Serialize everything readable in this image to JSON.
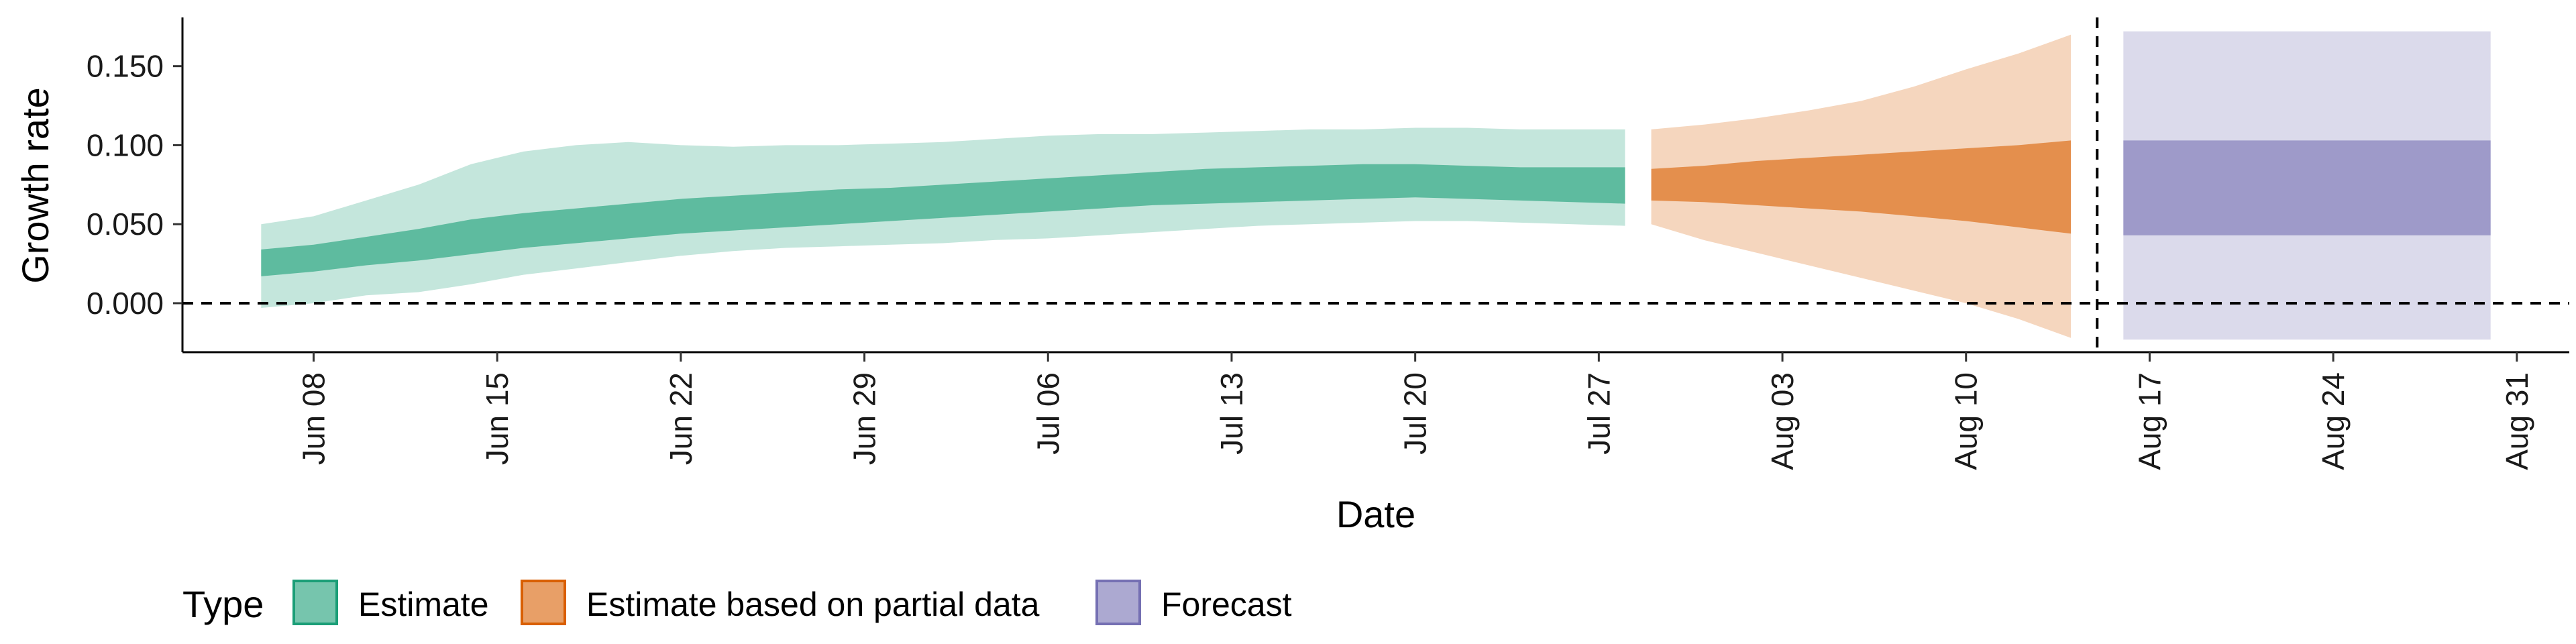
{
  "chart_data": {
    "type": "area",
    "xlabel": "Date",
    "ylabel": "Growth rate",
    "xlim": [
      "2020-06-03",
      "2020-09-02"
    ],
    "ylim": [
      -0.031,
      0.18
    ],
    "x_ticks": [
      "2020-06-08",
      "2020-06-15",
      "2020-06-22",
      "2020-06-29",
      "2020-07-06",
      "2020-07-13",
      "2020-07-20",
      "2020-07-27",
      "2020-08-03",
      "2020-08-10",
      "2020-08-17",
      "2020-08-24",
      "2020-08-31"
    ],
    "x_tick_labels": [
      "Jun 08",
      "Jun 15",
      "Jun 22",
      "Jun 29",
      "Jul 06",
      "Jul 13",
      "Jul 20",
      "Jul 27",
      "Aug 03",
      "Aug 10",
      "Aug 17",
      "Aug 24",
      "Aug 31"
    ],
    "y_ticks": [
      0.0,
      0.05,
      0.1,
      0.15
    ],
    "y_tick_labels": [
      "0.000",
      "0.050",
      "0.100",
      "0.150"
    ],
    "reference_lines": {
      "horizontal_y": 0.0,
      "vertical_x": "2020-08-15"
    },
    "grid": false,
    "legend": {
      "title": "Type",
      "position": "bottom-left",
      "entries": [
        "Estimate",
        "Estimate based on partial data",
        "Forecast"
      ]
    },
    "colors": {
      "Estimate": "#1b9e77",
      "Estimate based on partial data": "#d95f02",
      "Forecast": "#7570b3"
    },
    "series": [
      {
        "name": "Estimate",
        "x": [
          "2020-06-06",
          "2020-06-08",
          "2020-06-10",
          "2020-06-12",
          "2020-06-14",
          "2020-06-16",
          "2020-06-18",
          "2020-06-20",
          "2020-06-22",
          "2020-06-24",
          "2020-06-26",
          "2020-06-28",
          "2020-06-30",
          "2020-07-02",
          "2020-07-04",
          "2020-07-06",
          "2020-07-08",
          "2020-07-10",
          "2020-07-12",
          "2020-07-14",
          "2020-07-16",
          "2020-07-18",
          "2020-07-20",
          "2020-07-22",
          "2020-07-24",
          "2020-07-26",
          "2020-07-28"
        ],
        "lower_90": [
          -0.003,
          0.0,
          0.005,
          0.007,
          0.012,
          0.018,
          0.022,
          0.026,
          0.03,
          0.033,
          0.035,
          0.036,
          0.037,
          0.038,
          0.04,
          0.041,
          0.043,
          0.045,
          0.047,
          0.049,
          0.05,
          0.051,
          0.052,
          0.052,
          0.051,
          0.05,
          0.049
        ],
        "lower_50": [
          0.017,
          0.02,
          0.024,
          0.027,
          0.031,
          0.035,
          0.038,
          0.041,
          0.044,
          0.046,
          0.048,
          0.05,
          0.052,
          0.054,
          0.056,
          0.058,
          0.06,
          0.062,
          0.063,
          0.064,
          0.065,
          0.066,
          0.067,
          0.066,
          0.065,
          0.064,
          0.063
        ],
        "upper_50": [
          0.034,
          0.037,
          0.042,
          0.047,
          0.053,
          0.057,
          0.06,
          0.063,
          0.066,
          0.068,
          0.07,
          0.072,
          0.073,
          0.075,
          0.077,
          0.079,
          0.081,
          0.083,
          0.085,
          0.086,
          0.087,
          0.088,
          0.088,
          0.087,
          0.086,
          0.086,
          0.086
        ],
        "upper_90": [
          0.05,
          0.055,
          0.065,
          0.075,
          0.088,
          0.096,
          0.1,
          0.102,
          0.1,
          0.099,
          0.1,
          0.1,
          0.101,
          0.102,
          0.104,
          0.106,
          0.107,
          0.107,
          0.108,
          0.109,
          0.11,
          0.11,
          0.111,
          0.111,
          0.11,
          0.11,
          0.11
        ]
      },
      {
        "name": "Estimate based on partial data",
        "x": [
          "2020-07-29",
          "2020-07-31",
          "2020-08-02",
          "2020-08-04",
          "2020-08-06",
          "2020-08-08",
          "2020-08-10",
          "2020-08-12",
          "2020-08-14"
        ],
        "lower_90": [
          0.05,
          0.04,
          0.032,
          0.024,
          0.016,
          0.008,
          0.0,
          -0.01,
          -0.022
        ],
        "lower_50": [
          0.065,
          0.064,
          0.062,
          0.06,
          0.058,
          0.055,
          0.052,
          0.048,
          0.044
        ],
        "upper_50": [
          0.085,
          0.087,
          0.09,
          0.092,
          0.094,
          0.096,
          0.098,
          0.1,
          0.103
        ],
        "upper_90": [
          0.11,
          0.113,
          0.117,
          0.122,
          0.128,
          0.137,
          0.148,
          0.158,
          0.17
        ]
      },
      {
        "name": "Forecast",
        "x": [
          "2020-08-16",
          "2020-08-30"
        ],
        "lower_90": [
          -0.023,
          -0.023
        ],
        "lower_50": [
          0.043,
          0.043
        ],
        "upper_50": [
          0.103,
          0.103
        ],
        "upper_90": [
          0.172,
          0.172
        ]
      }
    ]
  }
}
